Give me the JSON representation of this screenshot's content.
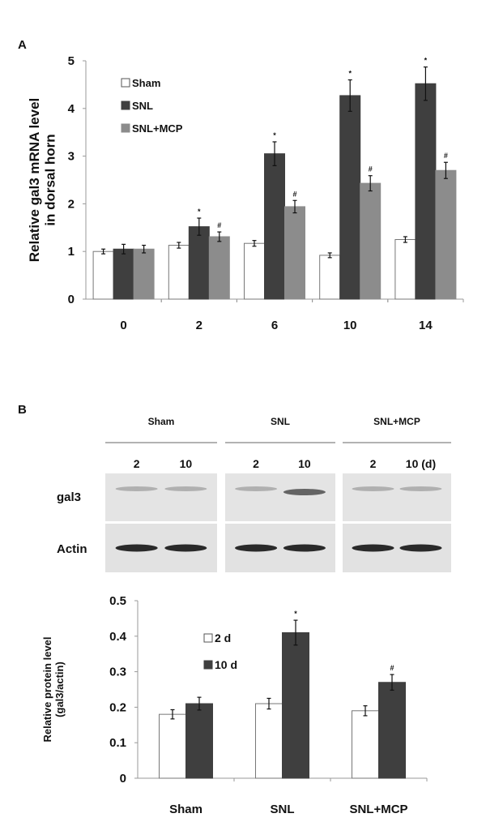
{
  "chart_data": [
    {
      "panel": "A",
      "type": "bar",
      "title": "",
      "xlabel": "",
      "ylabel": "Relative gal3 mRNA level in dorsal horn",
      "ylabel_lines": [
        "Relative gal3 mRNA level",
        "in dorsal horn"
      ],
      "ylim": [
        0,
        5
      ],
      "yticks": [
        "0",
        "1",
        "2",
        "3",
        "4",
        "5"
      ],
      "categories": [
        "0",
        "2",
        "6",
        "10",
        "14"
      ],
      "legend_position": "top-left",
      "series": [
        {
          "name": "Sham",
          "color": "#ffffff",
          "values": [
            1.0,
            1.13,
            1.17,
            0.92,
            1.25
          ],
          "errors": [
            0.05,
            0.06,
            0.06,
            0.05,
            0.06
          ],
          "marks": [
            "",
            "",
            "",
            "",
            ""
          ]
        },
        {
          "name": "SNL",
          "color": "#3f3f3f",
          "values": [
            1.05,
            1.52,
            3.05,
            4.27,
            4.52
          ],
          "errors": [
            0.1,
            0.18,
            0.25,
            0.33,
            0.35
          ],
          "marks": [
            "",
            "*",
            "*",
            "*",
            "*"
          ]
        },
        {
          "name": "SNL+MCP",
          "color": "#8c8c8c",
          "values": [
            1.05,
            1.31,
            1.94,
            2.43,
            2.7
          ],
          "errors": [
            0.08,
            0.1,
            0.13,
            0.16,
            0.17
          ],
          "marks": [
            "",
            "#",
            "#",
            "#",
            "#"
          ]
        }
      ]
    },
    {
      "panel": "B",
      "type": "bar",
      "title": "",
      "xlabel": "",
      "ylabel": "Relative protein level (gal3/actin)",
      "ylabel_lines": [
        "Relative protein level",
        "(gal3/actin)"
      ],
      "ylim": [
        0,
        0.5
      ],
      "yticks": [
        "0",
        "0.1",
        "0.2",
        "0.3",
        "0.4",
        "0.5"
      ],
      "categories": [
        "Sham",
        "SNL",
        "SNL+MCP"
      ],
      "legend_position": "top-left",
      "series": [
        {
          "name": "2 d",
          "color": "#ffffff",
          "values": [
            0.18,
            0.21,
            0.19
          ],
          "errors": [
            0.013,
            0.015,
            0.014
          ],
          "marks": [
            "",
            "",
            ""
          ]
        },
        {
          "name": "10 d",
          "color": "#3f3f3f",
          "values": [
            0.21,
            0.41,
            0.27
          ],
          "errors": [
            0.018,
            0.035,
            0.022
          ],
          "marks": [
            "",
            "*",
            "#"
          ]
        }
      ]
    }
  ],
  "panel_labels": {
    "a": "A",
    "b": "B"
  },
  "blot": {
    "groups": [
      "Sham",
      "SNL",
      "SNL+MCP"
    ],
    "lanes": [
      "2",
      "10",
      "2",
      "10",
      "2",
      "10 (d)"
    ],
    "rows": [
      "gal3",
      "Actin"
    ]
  }
}
